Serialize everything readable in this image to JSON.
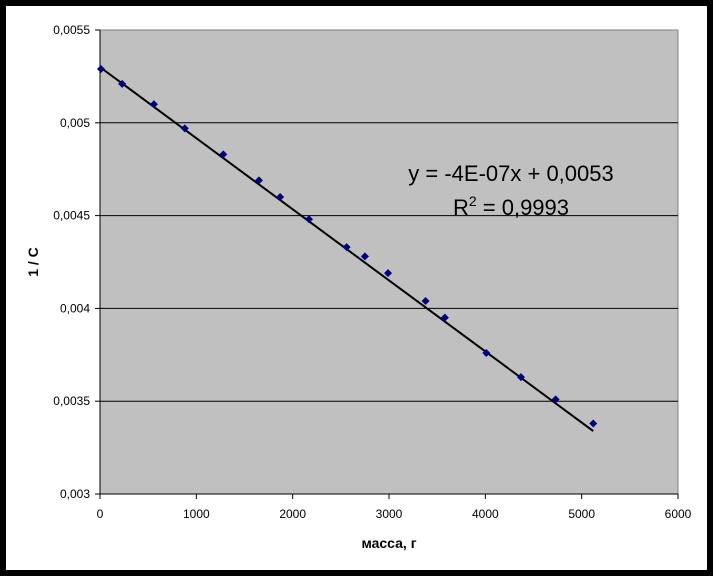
{
  "chart_data": {
    "type": "scatter",
    "title": "",
    "xlabel": "масса, г",
    "ylabel": "1 / С",
    "xlim": [
      0,
      6000
    ],
    "ylim": [
      0.003,
      0.0055
    ],
    "x_ticks": [
      "0",
      "1000",
      "2000",
      "3000",
      "4000",
      "5000",
      "6000"
    ],
    "y_ticks": [
      "0,003",
      "0,0035",
      "0,004",
      "0,0045",
      "0,005",
      "0,0055"
    ],
    "grid": "horizontal",
    "legend": "none",
    "plot_area_color": "#c0c0c0",
    "marker_color": "#000080",
    "trendline_color": "#000000",
    "series": [
      {
        "x": [
          10,
          230,
          560,
          880,
          1280,
          1650,
          1870,
          2170,
          2560,
          2750,
          2990,
          3380,
          3580,
          4010,
          4370,
          4730,
          5120
        ],
        "y": [
          0.00529,
          0.00521,
          0.0051,
          0.00497,
          0.00483,
          0.00469,
          0.0046,
          0.00448,
          0.00433,
          0.00428,
          0.00419,
          0.00404,
          0.00395,
          0.00376,
          0.00363,
          0.00351,
          0.00338
        ]
      }
    ],
    "trendline": {
      "type": "linear",
      "slope": -3.83e-07,
      "intercept": 0.0053,
      "x_range": [
        0,
        5120
      ],
      "equation": "y = -4E-07x + 0,0053",
      "r2_label": "R",
      "r2_sup": "2",
      "r2_value": " = 0,9993"
    }
  }
}
